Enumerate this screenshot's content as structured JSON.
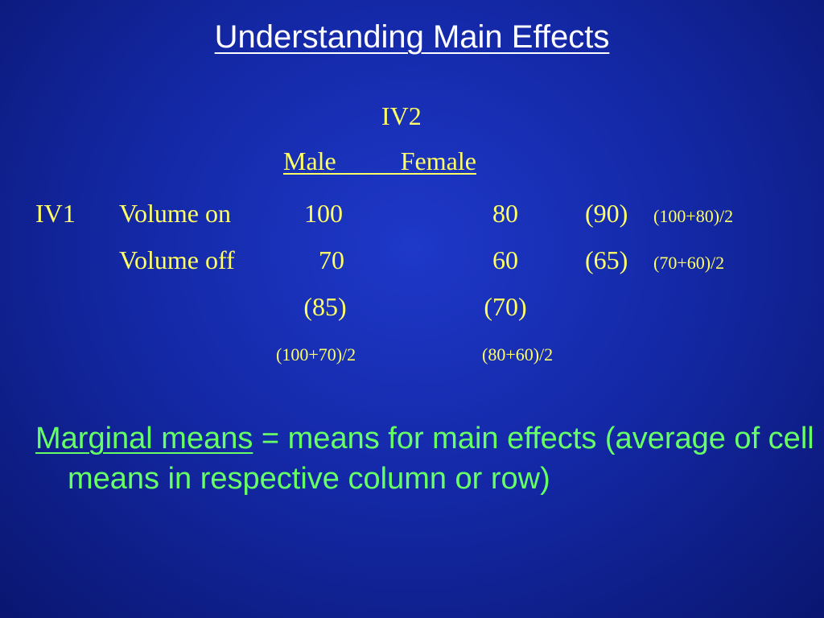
{
  "slide": {
    "title": "Understanding Main Effects"
  },
  "table": {
    "iv2_label": "IV2",
    "iv2_header": "Male          Female",
    "iv1_label": "IV1",
    "rows": [
      {
        "label": "Volume on",
        "male": "100",
        "female": "80",
        "row_mean": "(90)",
        "row_formula": "(100+80)/2"
      },
      {
        "label": "Volume off",
        "male": "70",
        "female": "60",
        "row_mean": "(65)",
        "row_formula": "(70+60)/2"
      }
    ],
    "column_means": {
      "male": "(85)",
      "female": "(70)"
    },
    "column_formulas": {
      "male": "(100+70)/2",
      "female": "(80+60)/2"
    }
  },
  "definition": {
    "term": "Marginal means",
    "text": " = means for main effects (average of cell means in respective column or row)"
  },
  "colors": {
    "background": "#1429a8",
    "title": "#ffffff",
    "table_text": "#ffff66",
    "definition_text": "#66ff66"
  }
}
